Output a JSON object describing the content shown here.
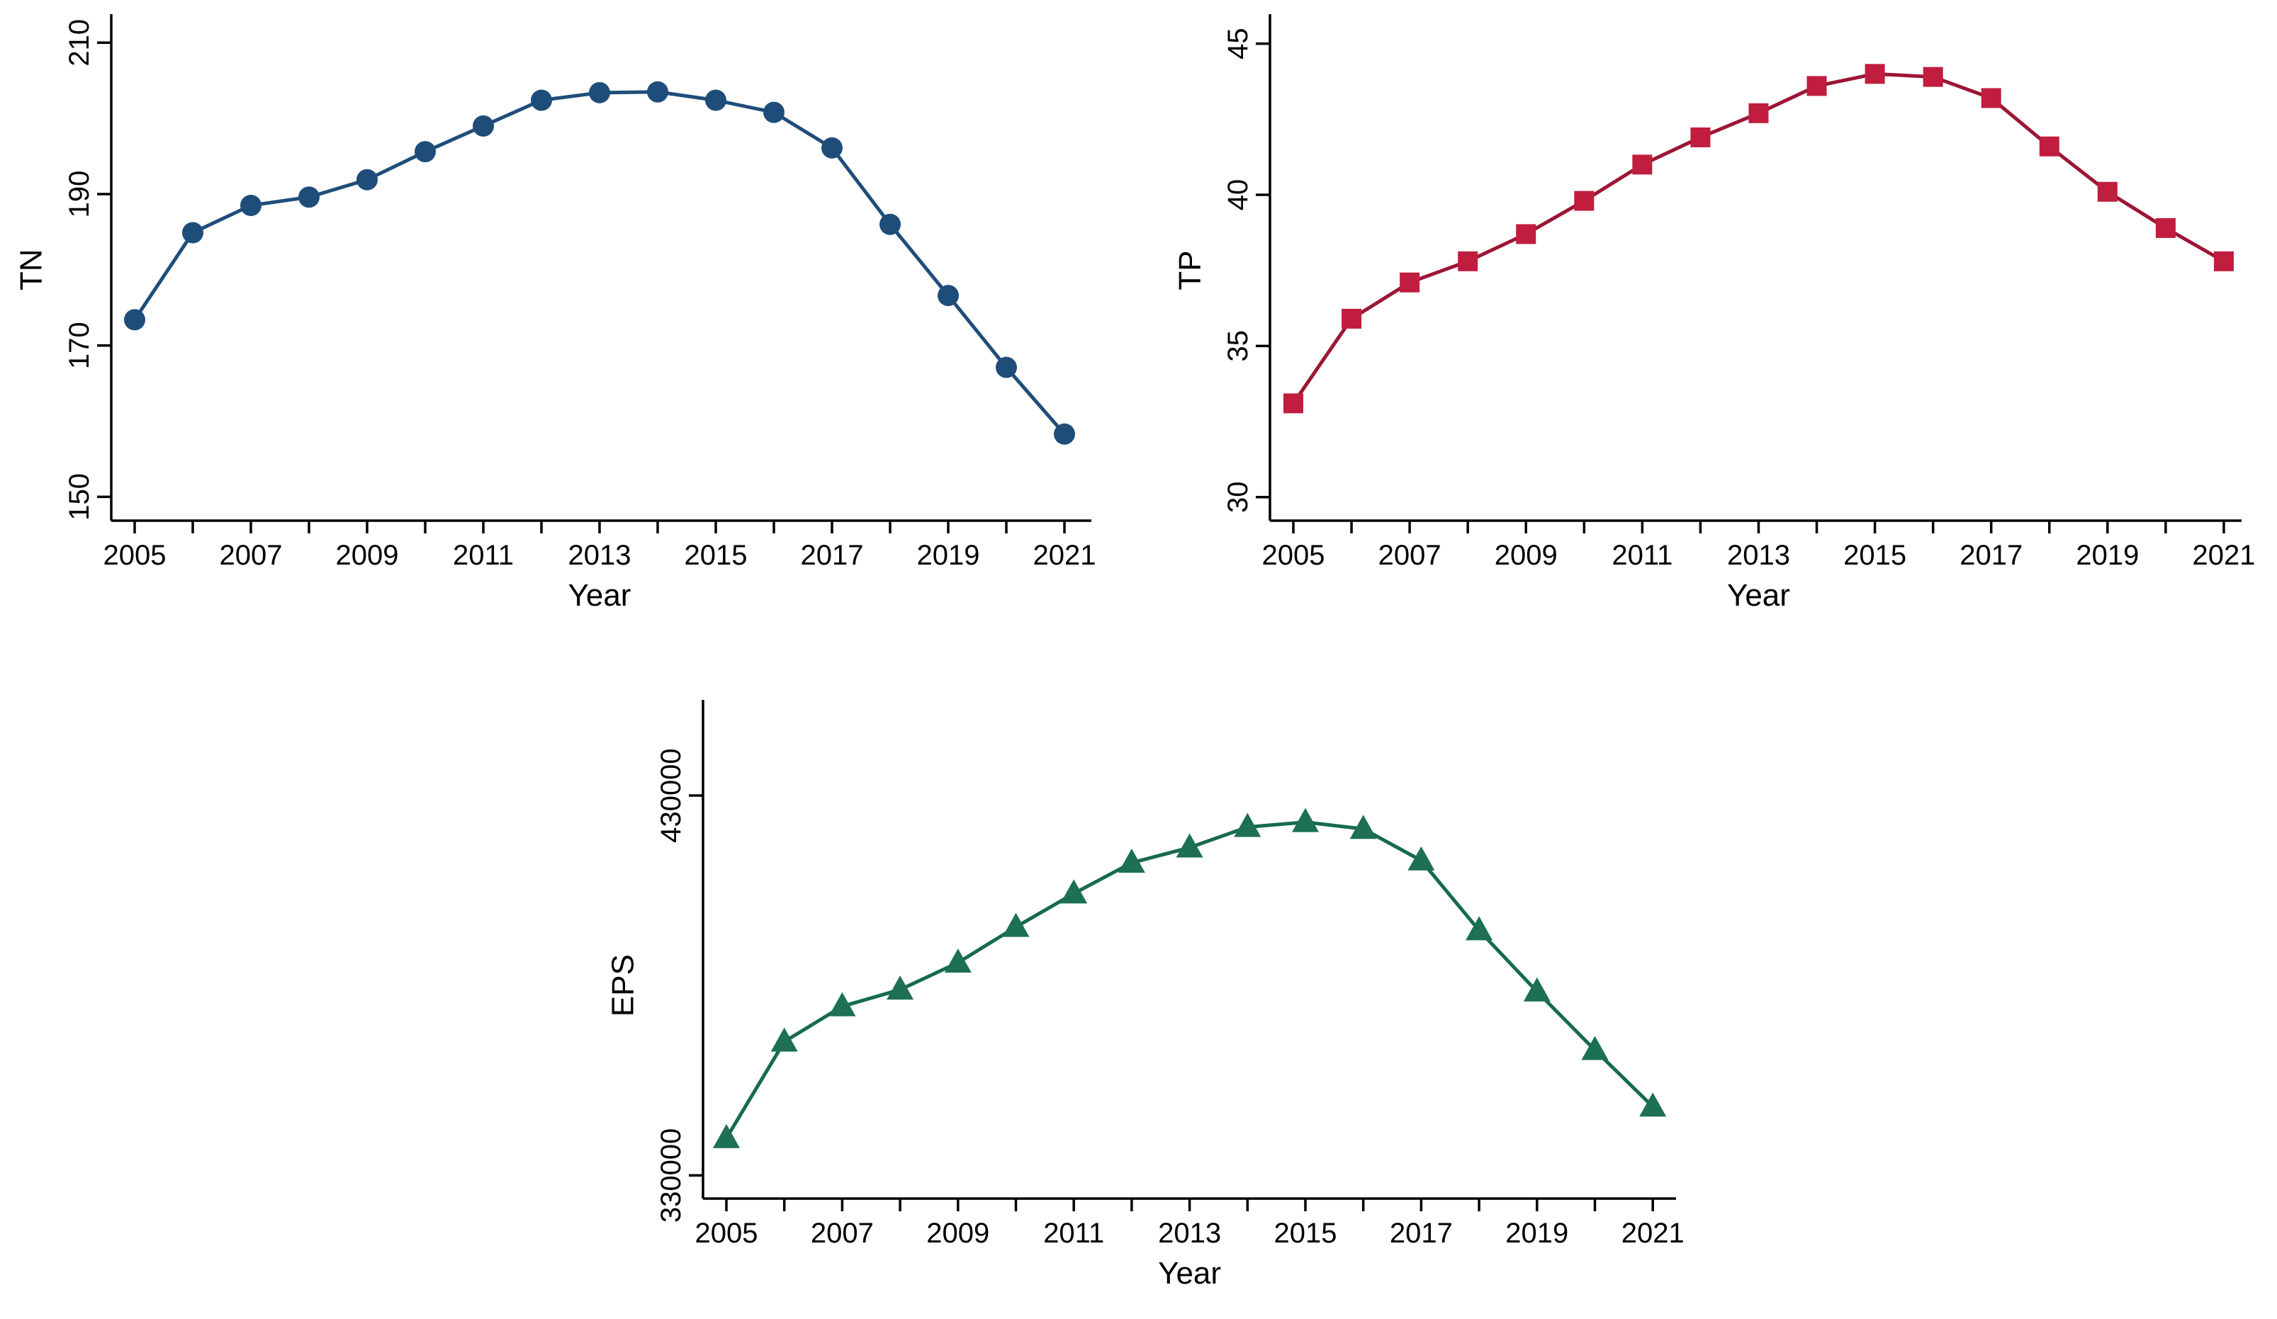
{
  "figure": {
    "background": "#ffffff",
    "description": "Three line charts of water-quality/effluent indicators by year"
  },
  "chart_data": [
    {
      "type": "line",
      "position": "top-left",
      "title": "",
      "xlabel": "Year",
      "ylabel": "TN",
      "marker": "circle",
      "line_color": "#1f4d7a",
      "marker_color": "#1f4d7a",
      "x": [
        2005,
        2006,
        2007,
        2008,
        2009,
        2010,
        2011,
        2012,
        2013,
        2014,
        2015,
        2016,
        2017,
        2018,
        2019,
        2020,
        2021
      ],
      "values": [
        173.4,
        184.9,
        188.5,
        189.6,
        191.9,
        195.6,
        199.0,
        202.4,
        203.4,
        203.5,
        202.4,
        200.8,
        196.1,
        186.0,
        176.6,
        167.1,
        158.3
      ],
      "yticks": [
        150,
        170,
        190,
        210
      ],
      "xticks_labeled": [
        2005,
        2007,
        2009,
        2011,
        2013,
        2015,
        2017,
        2019,
        2021
      ],
      "ylim": [
        146.9,
        213.8
      ],
      "grid": false,
      "legend": "none"
    },
    {
      "type": "line",
      "position": "top-right",
      "title": "",
      "xlabel": "Year",
      "ylabel": "TP",
      "marker": "square",
      "line_color": "#9c1535",
      "marker_color": "#c01d3f",
      "x": [
        2005,
        2006,
        2007,
        2008,
        2009,
        2010,
        2011,
        2012,
        2013,
        2014,
        2015,
        2016,
        2017,
        2018,
        2019,
        2020,
        2021
      ],
      "values": [
        33.1,
        35.9,
        37.1,
        37.8,
        38.7,
        39.8,
        41.0,
        41.9,
        42.7,
        43.6,
        44.0,
        43.9,
        43.2,
        41.6,
        40.1,
        38.9,
        37.8
      ],
      "yticks": [
        30,
        35,
        40,
        45
      ],
      "xticks_labeled": [
        2005,
        2007,
        2009,
        2011,
        2013,
        2015,
        2017,
        2019,
        2021
      ],
      "ylim": [
        29.2,
        46.0
      ],
      "grid": false,
      "legend": "none"
    },
    {
      "type": "line",
      "position": "bottom-center",
      "title": "",
      "xlabel": "Year",
      "ylabel": "EPS",
      "marker": "triangle",
      "line_color": "#166a50",
      "marker_color": "#1d6f55",
      "x": [
        2005,
        2006,
        2007,
        2008,
        2009,
        2010,
        2011,
        2012,
        2013,
        2014,
        2015,
        2016,
        2017,
        2018,
        2019,
        2020,
        2021
      ],
      "values": [
        339800,
        365200,
        374500,
        378900,
        386000,
        395400,
        404200,
        412300,
        416300,
        421700,
        423000,
        421200,
        412900,
        394500,
        378400,
        363000,
        348100
      ],
      "yticks": [
        330000,
        430000
      ],
      "xticks_labeled": [
        2005,
        2007,
        2009,
        2011,
        2013,
        2015,
        2017,
        2019,
        2021
      ],
      "ylim": [
        324000,
        455500
      ],
      "grid": false,
      "legend": "none"
    }
  ]
}
